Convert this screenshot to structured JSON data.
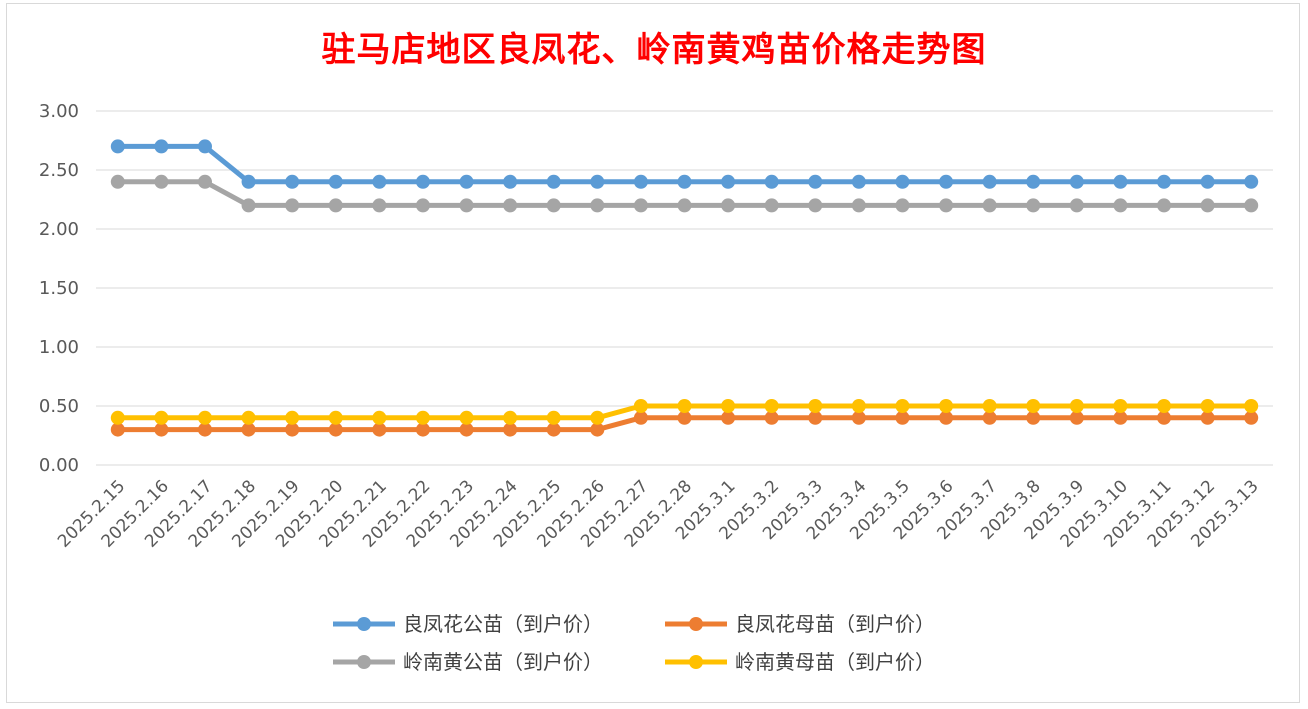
{
  "chart_data": {
    "type": "line",
    "title": "驻马店地区良凤花、岭南黄鸡苗价格走势图",
    "categories": [
      "2025.2.15",
      "2025.2.16",
      "2025.2.17",
      "2025.2.18",
      "2025.2.19",
      "2025.2.20",
      "2025.2.21",
      "2025.2.22",
      "2025.2.23",
      "2025.2.24",
      "2025.2.25",
      "2025.2.26",
      "2025.2.27",
      "2025.2.28",
      "2025.3.1",
      "2025.3.2",
      "2025.3.3",
      "2025.3.4",
      "2025.3.5",
      "2025.3.6",
      "2025.3.7",
      "2025.3.8",
      "2025.3.9",
      "2025.3.10",
      "2025.3.11",
      "2025.3.12",
      "2025.3.13"
    ],
    "ylim": [
      0,
      3
    ],
    "yticks": [
      "0.00",
      "0.50",
      "1.00",
      "1.50",
      "2.00",
      "2.50",
      "3.00"
    ],
    "grid": true,
    "legend_position": "bottom",
    "series": [
      {
        "name": "良凤花公苗（到户价）",
        "color": "#5b9bd5",
        "values": [
          2.7,
          2.7,
          2.7,
          2.4,
          2.4,
          2.4,
          2.4,
          2.4,
          2.4,
          2.4,
          2.4,
          2.4,
          2.4,
          2.4,
          2.4,
          2.4,
          2.4,
          2.4,
          2.4,
          2.4,
          2.4,
          2.4,
          2.4,
          2.4,
          2.4,
          2.4,
          2.4
        ]
      },
      {
        "name": "良凤花母苗（到户价）",
        "color": "#ed7d31",
        "values": [
          0.3,
          0.3,
          0.3,
          0.3,
          0.3,
          0.3,
          0.3,
          0.3,
          0.3,
          0.3,
          0.3,
          0.3,
          0.4,
          0.4,
          0.4,
          0.4,
          0.4,
          0.4,
          0.4,
          0.4,
          0.4,
          0.4,
          0.4,
          0.4,
          0.4,
          0.4,
          0.4
        ]
      },
      {
        "name": "岭南黄公苗（到户价）",
        "color": "#a5a5a5",
        "values": [
          2.4,
          2.4,
          2.4,
          2.2,
          2.2,
          2.2,
          2.2,
          2.2,
          2.2,
          2.2,
          2.2,
          2.2,
          2.2,
          2.2,
          2.2,
          2.2,
          2.2,
          2.2,
          2.2,
          2.2,
          2.2,
          2.2,
          2.2,
          2.2,
          2.2,
          2.2,
          2.2
        ]
      },
      {
        "name": "岭南黄母苗（到户价）",
        "color": "#ffc000",
        "values": [
          0.4,
          0.4,
          0.4,
          0.4,
          0.4,
          0.4,
          0.4,
          0.4,
          0.4,
          0.4,
          0.4,
          0.4,
          0.5,
          0.5,
          0.5,
          0.5,
          0.5,
          0.5,
          0.5,
          0.5,
          0.5,
          0.5,
          0.5,
          0.5,
          0.5,
          0.5,
          0.5
        ]
      }
    ]
  }
}
